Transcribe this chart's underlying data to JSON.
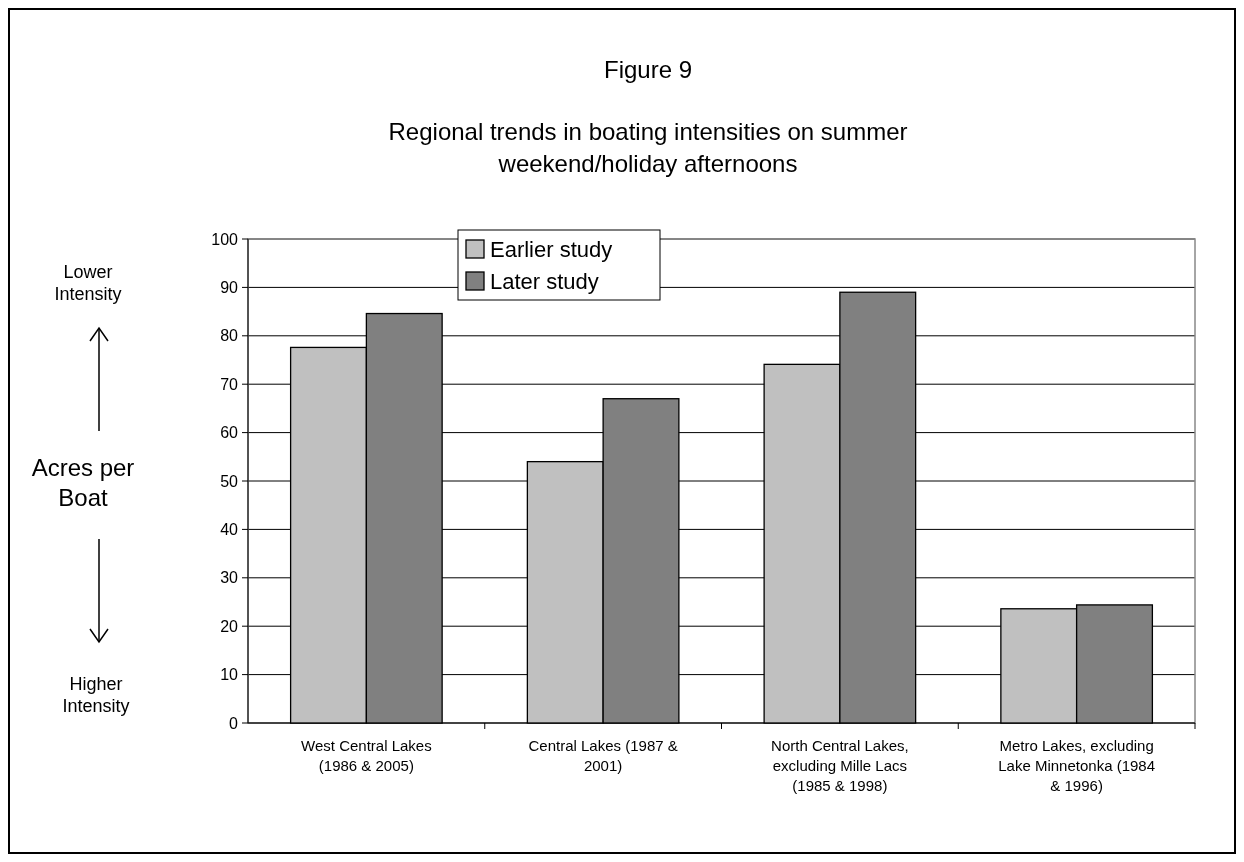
{
  "chart_data": {
    "type": "bar",
    "title": "Figure 9",
    "subtitle": "Regional trends in boating intensities on summer weekend/holiday afternoons",
    "ylabel": "Acres per Boat",
    "annotations": [
      "Lower Intensity",
      "Higher Intensity"
    ],
    "categories": [
      "West Central Lakes (1986 & 2005)",
      "Central Lakes (1987 & 2001)",
      "North Central Lakes, excluding Mille Lacs (1985 & 1998)",
      "Metro Lakes, excluding Lake Minnetonka (1984 & 1996)"
    ],
    "series": [
      {
        "name": "Earlier study",
        "color": "#c0c0c0",
        "values": [
          77.6,
          54.0,
          74.1,
          23.6
        ]
      },
      {
        "name": "Later study",
        "color": "#808080",
        "values": [
          84.6,
          67.0,
          89.0,
          24.4
        ]
      }
    ],
    "ylim": [
      0,
      100
    ],
    "yticks": [
      0,
      10,
      20,
      30,
      40,
      50,
      60,
      70,
      80,
      90,
      100
    ],
    "grid": "y",
    "legend": "top"
  }
}
